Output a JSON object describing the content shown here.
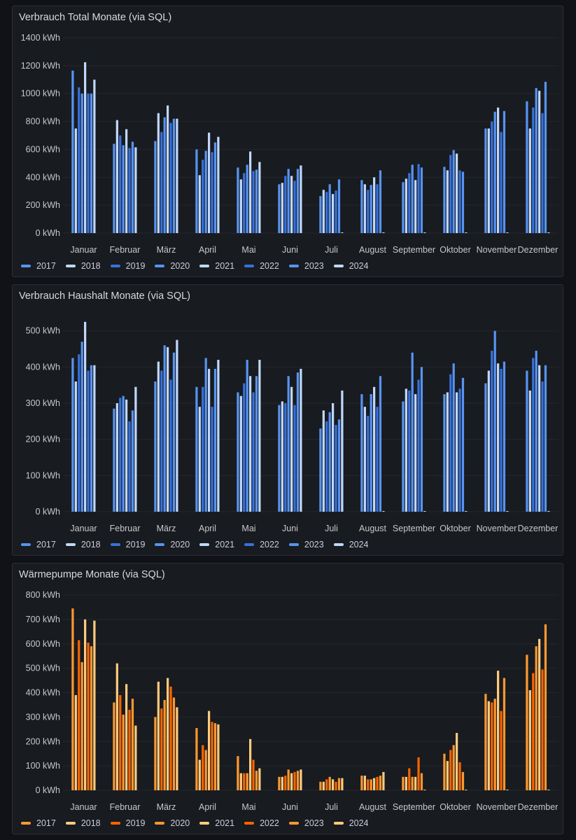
{
  "months": [
    "Januar",
    "Februar",
    "März",
    "April",
    "Mai",
    "Juni",
    "Juli",
    "August",
    "September",
    "Oktober",
    "November",
    "Dezember"
  ],
  "years": [
    "2017",
    "2018",
    "2019",
    "2020",
    "2021",
    "2022",
    "2023",
    "2024"
  ],
  "chart_data": [
    {
      "type": "bar",
      "title": "Verbrauch Total Monate (via SQL)",
      "unit": "kWh",
      "ylim": [
        0,
        1400
      ],
      "yticks": [
        0,
        200,
        400,
        600,
        800,
        1000,
        1200,
        1400
      ],
      "ytick_labels": [
        "0 kWh",
        "200 kWh",
        "400 kWh",
        "600 kWh",
        "800 kWh",
        "1000 kWh",
        "1200 kWh",
        "1400 kWh"
      ],
      "categories": [
        "Januar",
        "Februar",
        "März",
        "April",
        "Mai",
        "Juni",
        "Juli",
        "August",
        "September",
        "Oktober",
        "November",
        "Dezember"
      ],
      "colors": [
        "#5794f2",
        "#c0d8ff",
        "#3871dc",
        "#5794f2",
        "#c0d8ff",
        "#3871dc",
        "#5794f2",
        "#c0d8ff"
      ],
      "series": [
        {
          "name": "2017",
          "values": [
            1165,
            640,
            660,
            600,
            470,
            350,
            265,
            380,
            365,
            475,
            750,
            945
          ]
        },
        {
          "name": "2018",
          "values": [
            750,
            810,
            860,
            415,
            385,
            360,
            310,
            350,
            390,
            450,
            750,
            750
          ]
        },
        {
          "name": "2019",
          "values": [
            1045,
            700,
            725,
            525,
            430,
            410,
            295,
            310,
            430,
            560,
            800,
            900
          ]
        },
        {
          "name": "2020",
          "values": [
            1000,
            630,
            830,
            590,
            490,
            460,
            350,
            345,
            490,
            595,
            870,
            1040
          ]
        },
        {
          "name": "2021",
          "values": [
            1225,
            745,
            915,
            720,
            585,
            410,
            280,
            400,
            380,
            570,
            900,
            1020
          ]
        },
        {
          "name": "2022",
          "values": [
            1000,
            610,
            790,
            580,
            445,
            375,
            305,
            350,
            495,
            450,
            725,
            860
          ]
        },
        {
          "name": "2023",
          "values": [
            1000,
            655,
            820,
            650,
            455,
            460,
            385,
            450,
            470,
            440,
            875,
            1085
          ]
        },
        {
          "name": "2024",
          "values": [
            1100,
            615,
            820,
            690,
            510,
            485,
            0,
            0,
            0,
            0,
            0,
            0
          ]
        }
      ],
      "legend_position": "bottom-left"
    },
    {
      "type": "bar",
      "title": "Verbrauch Haushalt Monate (via SQL)",
      "unit": "kWh",
      "ylim": [
        0,
        540
      ],
      "yticks": [
        0,
        100,
        200,
        300,
        400,
        500
      ],
      "ytick_labels": [
        "0 kWh",
        "100 kWh",
        "200 kWh",
        "300 kWh",
        "400 kWh",
        "500 kWh"
      ],
      "categories": [
        "Januar",
        "Februar",
        "März",
        "April",
        "Mai",
        "Juni",
        "Juli",
        "August",
        "September",
        "Oktober",
        "November",
        "Dezember"
      ],
      "colors": [
        "#5794f2",
        "#c0d8ff",
        "#3871dc",
        "#5794f2",
        "#c0d8ff",
        "#3871dc",
        "#5794f2",
        "#c0d8ff"
      ],
      "series": [
        {
          "name": "2017",
          "values": [
            425,
            285,
            360,
            345,
            330,
            295,
            230,
            325,
            305,
            325,
            355,
            390
          ]
        },
        {
          "name": "2018",
          "values": [
            360,
            300,
            415,
            290,
            320,
            305,
            280,
            290,
            340,
            330,
            390,
            335
          ]
        },
        {
          "name": "2019",
          "values": [
            435,
            315,
            390,
            345,
            355,
            300,
            250,
            265,
            335,
            380,
            445,
            425
          ]
        },
        {
          "name": "2020",
          "values": [
            470,
            320,
            460,
            425,
            420,
            375,
            275,
            325,
            440,
            410,
            500,
            445
          ]
        },
        {
          "name": "2021",
          "values": [
            525,
            310,
            455,
            395,
            375,
            345,
            300,
            345,
            325,
            330,
            410,
            405
          ]
        },
        {
          "name": "2022",
          "values": [
            390,
            250,
            365,
            290,
            330,
            295,
            240,
            290,
            365,
            340,
            395,
            360
          ]
        },
        {
          "name": "2023",
          "values": [
            405,
            280,
            440,
            395,
            375,
            385,
            255,
            375,
            400,
            370,
            415,
            405
          ]
        },
        {
          "name": "2024",
          "values": [
            405,
            345,
            475,
            420,
            420,
            395,
            335,
            0,
            0,
            0,
            0,
            0
          ]
        }
      ],
      "legend_position": "bottom-left"
    },
    {
      "type": "bar",
      "title": "Wärmepumpe Monate (via SQL)",
      "unit": "kWh",
      "ylim": [
        0,
        800
      ],
      "yticks": [
        0,
        100,
        200,
        300,
        400,
        500,
        600,
        700,
        800
      ],
      "ytick_labels": [
        "0 kWh",
        "100 kWh",
        "200 kWh",
        "300 kWh",
        "400 kWh",
        "500 kWh",
        "600 kWh",
        "700 kWh",
        "800 kWh"
      ],
      "categories": [
        "Januar",
        "Februar",
        "März",
        "April",
        "Mai",
        "Juni",
        "Juli",
        "August",
        "September",
        "Oktober",
        "November",
        "Dezember"
      ],
      "colors": [
        "#ff9830",
        "#ffcb7d",
        "#fa6400",
        "#ff9830",
        "#ffcb7d",
        "#fa6400",
        "#ff9830",
        "#ffcb7d"
      ],
      "series": [
        {
          "name": "2017",
          "values": [
            745,
            360,
            300,
            255,
            140,
            55,
            35,
            60,
            55,
            150,
            395,
            555
          ]
        },
        {
          "name": "2018",
          "values": [
            390,
            520,
            445,
            125,
            70,
            55,
            35,
            60,
            55,
            120,
            365,
            410
          ]
        },
        {
          "name": "2019",
          "values": [
            615,
            390,
            335,
            185,
            70,
            60,
            45,
            45,
            90,
            165,
            360,
            480
          ]
        },
        {
          "name": "2020",
          "values": [
            525,
            310,
            370,
            165,
            70,
            85,
            55,
            45,
            55,
            185,
            375,
            590
          ]
        },
        {
          "name": "2021",
          "values": [
            700,
            435,
            460,
            325,
            210,
            70,
            45,
            50,
            55,
            235,
            490,
            620
          ]
        },
        {
          "name": "2022",
          "values": [
            605,
            330,
            425,
            280,
            125,
            75,
            35,
            55,
            135,
            115,
            325,
            495
          ]
        },
        {
          "name": "2023",
          "values": [
            590,
            375,
            380,
            275,
            80,
            80,
            50,
            60,
            70,
            75,
            460,
            680
          ]
        },
        {
          "name": "2024",
          "values": [
            695,
            265,
            340,
            270,
            90,
            85,
            50,
            75,
            0,
            0,
            0,
            0
          ]
        }
      ],
      "legend_position": "bottom-left"
    }
  ]
}
